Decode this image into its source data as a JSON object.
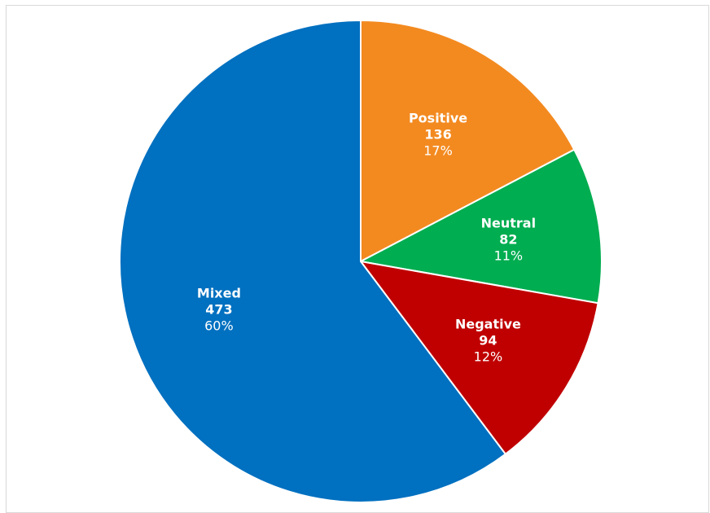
{
  "chart_data": {
    "type": "pie",
    "title": "",
    "slices": [
      {
        "name": "Positive",
        "value": 136,
        "percent": "17%",
        "color": "#F38A20"
      },
      {
        "name": "Neutral",
        "value": 82,
        "percent": "11%",
        "color": "#00AD50"
      },
      {
        "name": "Negative",
        "value": 94,
        "percent": "12%",
        "color": "#C00000"
      },
      {
        "name": "Mixed",
        "value": 473,
        "percent": "60%",
        "color": "#0070C0"
      }
    ],
    "start_angle_deg": 0,
    "direction": "clockwise",
    "legend": "none",
    "data_labels": "inside"
  }
}
